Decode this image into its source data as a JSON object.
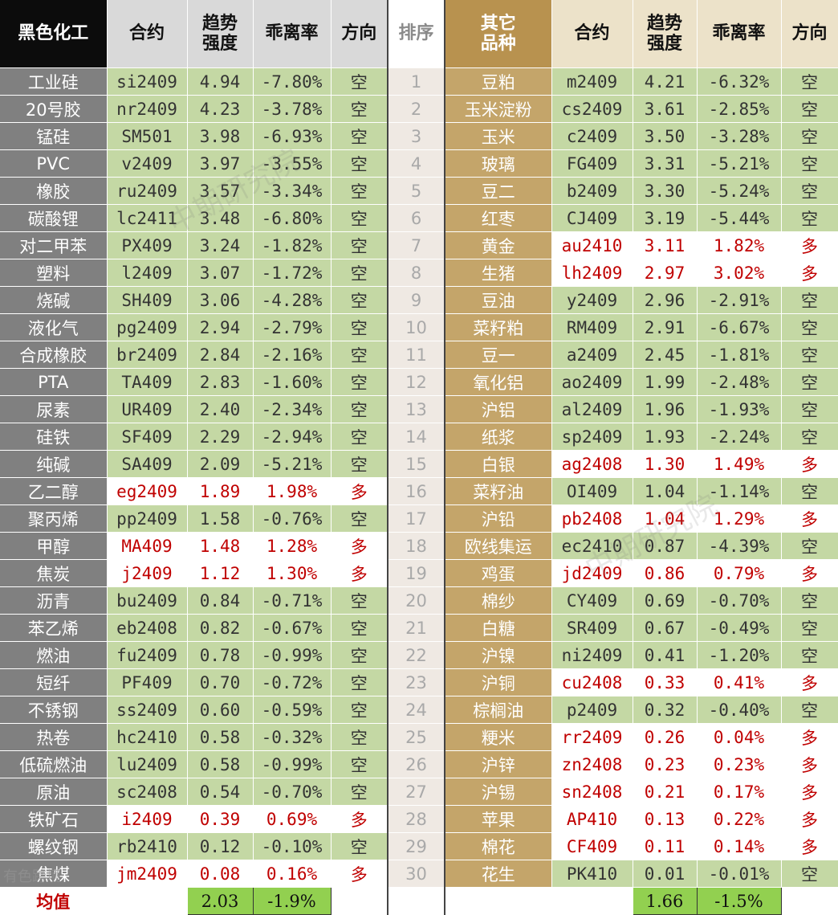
{
  "header": {
    "left_category": "黑色化工",
    "contract": "合约",
    "trend_line1": "趋势",
    "trend_line2": "强度",
    "deviation": "乖离率",
    "direction": "方向",
    "rank": "排序",
    "right_category_line1": "其它",
    "right_category_line2": "品种"
  },
  "rows": [
    {
      "rank": "1",
      "left": {
        "name": "工业硅",
        "contract": "si2409",
        "trend": "4.94",
        "dev": "-7.80%",
        "dir": "空"
      },
      "right": {
        "name": "豆粕",
        "contract": "m2409",
        "trend": "4.21",
        "dev": "-6.32%",
        "dir": "空"
      }
    },
    {
      "rank": "2",
      "left": {
        "name": "20号胶",
        "contract": "nr2409",
        "trend": "4.23",
        "dev": "-3.78%",
        "dir": "空"
      },
      "right": {
        "name": "玉米淀粉",
        "contract": "cs2409",
        "trend": "3.61",
        "dev": "-2.85%",
        "dir": "空"
      }
    },
    {
      "rank": "3",
      "left": {
        "name": "锰硅",
        "contract": "SM501",
        "trend": "3.98",
        "dev": "-6.93%",
        "dir": "空"
      },
      "right": {
        "name": "玉米",
        "contract": "c2409",
        "trend": "3.50",
        "dev": "-3.28%",
        "dir": "空"
      }
    },
    {
      "rank": "4",
      "left": {
        "name": "PVC",
        "contract": "v2409",
        "trend": "3.97",
        "dev": "-3.55%",
        "dir": "空"
      },
      "right": {
        "name": "玻璃",
        "contract": "FG409",
        "trend": "3.31",
        "dev": "-5.21%",
        "dir": "空"
      }
    },
    {
      "rank": "5",
      "left": {
        "name": "橡胶",
        "contract": "ru2409",
        "trend": "3.57",
        "dev": "-3.34%",
        "dir": "空"
      },
      "right": {
        "name": "豆二",
        "contract": "b2409",
        "trend": "3.30",
        "dev": "-5.24%",
        "dir": "空"
      }
    },
    {
      "rank": "6",
      "left": {
        "name": "碳酸锂",
        "contract": "lc2411",
        "trend": "3.48",
        "dev": "-6.80%",
        "dir": "空"
      },
      "right": {
        "name": "红枣",
        "contract": "CJ409",
        "trend": "3.19",
        "dev": "-5.44%",
        "dir": "空"
      }
    },
    {
      "rank": "7",
      "left": {
        "name": "对二甲苯",
        "contract": "PX409",
        "trend": "3.24",
        "dev": "-1.82%",
        "dir": "空"
      },
      "right": {
        "name": "黄金",
        "contract": "au2410",
        "trend": "3.11",
        "dev": "1.82%",
        "dir": "多"
      }
    },
    {
      "rank": "8",
      "left": {
        "name": "塑料",
        "contract": "l2409",
        "trend": "3.07",
        "dev": "-1.72%",
        "dir": "空"
      },
      "right": {
        "name": "生猪",
        "contract": "lh2409",
        "trend": "2.97",
        "dev": "3.02%",
        "dir": "多"
      }
    },
    {
      "rank": "9",
      "left": {
        "name": "烧碱",
        "contract": "SH409",
        "trend": "3.06",
        "dev": "-4.28%",
        "dir": "空"
      },
      "right": {
        "name": "豆油",
        "contract": "y2409",
        "trend": "2.96",
        "dev": "-2.91%",
        "dir": "空"
      }
    },
    {
      "rank": "10",
      "left": {
        "name": "液化气",
        "contract": "pg2409",
        "trend": "2.94",
        "dev": "-2.79%",
        "dir": "空"
      },
      "right": {
        "name": "菜籽粕",
        "contract": "RM409",
        "trend": "2.91",
        "dev": "-6.67%",
        "dir": "空"
      }
    },
    {
      "rank": "11",
      "left": {
        "name": "合成橡胶",
        "contract": "br2409",
        "trend": "2.84",
        "dev": "-2.16%",
        "dir": "空"
      },
      "right": {
        "name": "豆一",
        "contract": "a2409",
        "trend": "2.45",
        "dev": "-1.81%",
        "dir": "空"
      }
    },
    {
      "rank": "12",
      "left": {
        "name": "PTA",
        "contract": "TA409",
        "trend": "2.83",
        "dev": "-1.60%",
        "dir": "空"
      },
      "right": {
        "name": "氧化铝",
        "contract": "ao2409",
        "trend": "1.99",
        "dev": "-2.48%",
        "dir": "空"
      }
    },
    {
      "rank": "13",
      "left": {
        "name": "尿素",
        "contract": "UR409",
        "trend": "2.40",
        "dev": "-2.34%",
        "dir": "空"
      },
      "right": {
        "name": "沪铝",
        "contract": "al2409",
        "trend": "1.96",
        "dev": "-1.93%",
        "dir": "空"
      }
    },
    {
      "rank": "14",
      "left": {
        "name": "硅铁",
        "contract": "SF409",
        "trend": "2.29",
        "dev": "-2.94%",
        "dir": "空"
      },
      "right": {
        "name": "纸浆",
        "contract": "sp2409",
        "trend": "1.93",
        "dev": "-2.24%",
        "dir": "空"
      }
    },
    {
      "rank": "15",
      "left": {
        "name": "纯碱",
        "contract": "SA409",
        "trend": "2.09",
        "dev": "-5.21%",
        "dir": "空"
      },
      "right": {
        "name": "白银",
        "contract": "ag2408",
        "trend": "1.30",
        "dev": "1.49%",
        "dir": "多"
      }
    },
    {
      "rank": "16",
      "left": {
        "name": "乙二醇",
        "contract": "eg2409",
        "trend": "1.89",
        "dev": "1.98%",
        "dir": "多"
      },
      "right": {
        "name": "菜籽油",
        "contract": "OI409",
        "trend": "1.04",
        "dev": "-1.14%",
        "dir": "空"
      }
    },
    {
      "rank": "17",
      "left": {
        "name": "聚丙烯",
        "contract": "pp2409",
        "trend": "1.58",
        "dev": "-0.76%",
        "dir": "空"
      },
      "right": {
        "name": "沪铅",
        "contract": "pb2408",
        "trend": "1.04",
        "dev": "1.29%",
        "dir": "多"
      }
    },
    {
      "rank": "18",
      "left": {
        "name": "甲醇",
        "contract": "MA409",
        "trend": "1.48",
        "dev": "1.28%",
        "dir": "多"
      },
      "right": {
        "name": "欧线集运",
        "contract": "ec2410",
        "trend": "0.87",
        "dev": "-4.39%",
        "dir": "空"
      }
    },
    {
      "rank": "19",
      "left": {
        "name": "焦炭",
        "contract": "j2409",
        "trend": "1.12",
        "dev": "1.30%",
        "dir": "多"
      },
      "right": {
        "name": "鸡蛋",
        "contract": "jd2409",
        "trend": "0.86",
        "dev": "0.79%",
        "dir": "多"
      }
    },
    {
      "rank": "20",
      "left": {
        "name": "沥青",
        "contract": "bu2409",
        "trend": "0.84",
        "dev": "-0.71%",
        "dir": "空"
      },
      "right": {
        "name": "棉纱",
        "contract": "CY409",
        "trend": "0.69",
        "dev": "-0.70%",
        "dir": "空"
      }
    },
    {
      "rank": "21",
      "left": {
        "name": "苯乙烯",
        "contract": "eb2408",
        "trend": "0.82",
        "dev": "-0.67%",
        "dir": "空"
      },
      "right": {
        "name": "白糖",
        "contract": "SR409",
        "trend": "0.67",
        "dev": "-0.49%",
        "dir": "空"
      }
    },
    {
      "rank": "22",
      "left": {
        "name": "燃油",
        "contract": "fu2409",
        "trend": "0.78",
        "dev": "-0.99%",
        "dir": "空"
      },
      "right": {
        "name": "沪镍",
        "contract": "ni2409",
        "trend": "0.41",
        "dev": "-1.20%",
        "dir": "空"
      }
    },
    {
      "rank": "23",
      "left": {
        "name": "短纤",
        "contract": "PF409",
        "trend": "0.70",
        "dev": "-0.72%",
        "dir": "空"
      },
      "right": {
        "name": "沪铜",
        "contract": "cu2408",
        "trend": "0.33",
        "dev": "0.41%",
        "dir": "多"
      }
    },
    {
      "rank": "24",
      "left": {
        "name": "不锈钢",
        "contract": "ss2409",
        "trend": "0.60",
        "dev": "-0.59%",
        "dir": "空"
      },
      "right": {
        "name": "棕榈油",
        "contract": "p2409",
        "trend": "0.32",
        "dev": "-0.40%",
        "dir": "空"
      }
    },
    {
      "rank": "25",
      "left": {
        "name": "热卷",
        "contract": "hc2410",
        "trend": "0.58",
        "dev": "-0.32%",
        "dir": "空"
      },
      "right": {
        "name": "粳米",
        "contract": "rr2409",
        "trend": "0.26",
        "dev": "0.04%",
        "dir": "多"
      }
    },
    {
      "rank": "26",
      "left": {
        "name": "低硫燃油",
        "contract": "lu2409",
        "trend": "0.58",
        "dev": "-0.99%",
        "dir": "空"
      },
      "right": {
        "name": "沪锌",
        "contract": "zn2408",
        "trend": "0.23",
        "dev": "0.23%",
        "dir": "多"
      }
    },
    {
      "rank": "27",
      "left": {
        "name": "原油",
        "contract": "sc2408",
        "trend": "0.54",
        "dev": "-0.70%",
        "dir": "空"
      },
      "right": {
        "name": "沪锡",
        "contract": "sn2408",
        "trend": "0.21",
        "dev": "0.17%",
        "dir": "多"
      }
    },
    {
      "rank": "28",
      "left": {
        "name": "铁矿石",
        "contract": "i2409",
        "trend": "0.39",
        "dev": "0.69%",
        "dir": "多"
      },
      "right": {
        "name": "苹果",
        "contract": "AP410",
        "trend": "0.13",
        "dev": "0.22%",
        "dir": "多"
      }
    },
    {
      "rank": "29",
      "left": {
        "name": "螺纹钢",
        "contract": "rb2410",
        "trend": "0.12",
        "dev": "-0.10%",
        "dir": "空"
      },
      "right": {
        "name": "棉花",
        "contract": "CF409",
        "trend": "0.11",
        "dev": "0.14%",
        "dir": "多"
      }
    },
    {
      "rank": "30",
      "left": {
        "name": "焦煤",
        "contract": "jm2409",
        "trend": "0.08",
        "dev": "0.16%",
        "dir": "多"
      },
      "right": {
        "name": "花生",
        "contract": "PK410",
        "trend": "0.01",
        "dev": "-0.01%",
        "dir": "空"
      }
    }
  ],
  "average": {
    "label": "均值",
    "left_trend": "2.03",
    "left_dev": "-1.9%",
    "right_trend": "1.66",
    "right_dev": "-1.5%"
  },
  "watermark": "中期研究院",
  "logo_text": "有色跨境",
  "colors": {
    "short_bg": "#c4d8a4",
    "long_text": "#c00000",
    "left_name_bg": "#808080",
    "right_name_bg": "#c4a56a",
    "avg_bg": "#92d050"
  }
}
